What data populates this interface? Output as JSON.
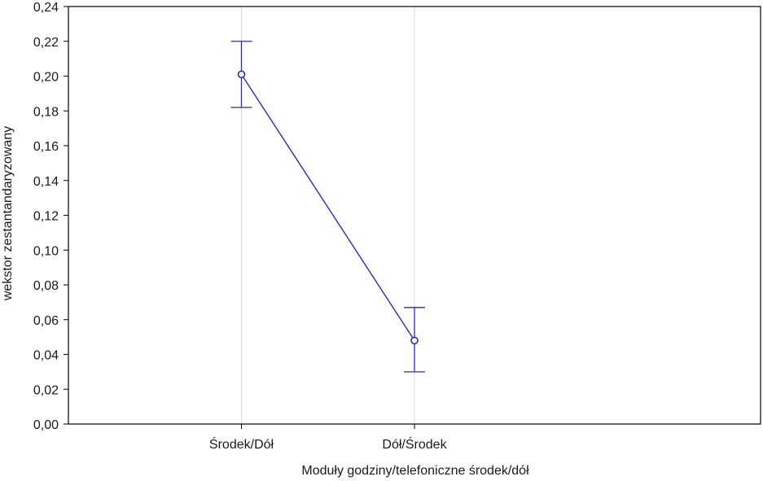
{
  "chart_data": {
    "type": "line",
    "title": "",
    "xlabel": "Moduły godziny/telefoniczne środek/dół",
    "ylabel": "wekstor zestantandaryzowany",
    "categories": [
      "Środek/Dół",
      "Dół/Środek"
    ],
    "series": [
      {
        "values": [
          0.201,
          0.048
        ],
        "error_lower": [
          0.182,
          0.03
        ],
        "error_upper": [
          0.22,
          0.067
        ]
      }
    ],
    "ylim": [
      0.0,
      0.24
    ],
    "yticks": [
      "0,00",
      "0,02",
      "0,04",
      "0,06",
      "0,08",
      "0,10",
      "0,12",
      "0,14",
      "0,16",
      "0,18",
      "0,20",
      "0,22",
      "0,24"
    ],
    "grid": "vertical at categories",
    "line_color": "#2b2bb8",
    "marker": "open-circle",
    "error_bars": true
  }
}
